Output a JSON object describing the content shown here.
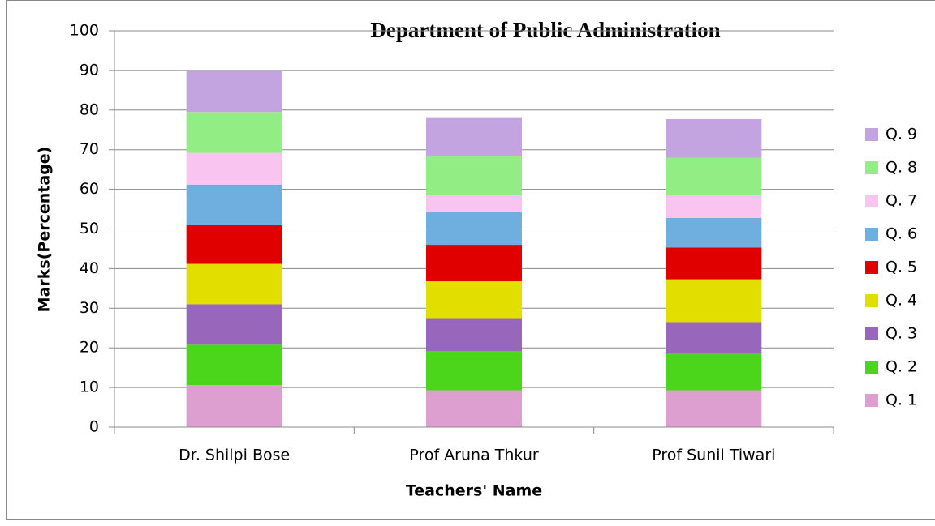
{
  "chart_data": {
    "type": "stacked_bar",
    "title": "Department of Public Administration",
    "x_label": "Teachers' Name",
    "y_label": "Marks(Percentage)",
    "categories": [
      "Dr. Shilpi Bose",
      "Prof Aruna Thkur",
      "Prof Sunil Tiwari"
    ],
    "series": [
      {
        "name": "Q. 1",
        "color": "#dd9fcf",
        "values": [
          10.6,
          9.3,
          9.3
        ]
      },
      {
        "name": "Q. 2",
        "color": "#4bd51b",
        "values": [
          10.2,
          9.9,
          9.3
        ]
      },
      {
        "name": "Q. 3",
        "color": "#9866ba",
        "values": [
          10.2,
          8.3,
          7.9
        ]
      },
      {
        "name": "Q. 4",
        "color": "#e2df00",
        "values": [
          10.2,
          9.3,
          10.8
        ]
      },
      {
        "name": "Q. 5",
        "color": "#e00000",
        "values": [
          9.8,
          9.2,
          8.0
        ]
      },
      {
        "name": "Q. 6",
        "color": "#6eafe0",
        "values": [
          10.2,
          8.2,
          7.5
        ]
      },
      {
        "name": "Q. 7",
        "color": "#f9c4ef",
        "values": [
          8.0,
          4.3,
          5.7
        ]
      },
      {
        "name": "Q. 8",
        "color": "#92ee84",
        "values": [
          10.3,
          9.8,
          9.5
        ]
      },
      {
        "name": "Q. 9",
        "color": "#c3a4e0",
        "values": [
          10.3,
          9.9,
          9.7
        ]
      }
    ],
    "ylim": [
      0,
      100
    ],
    "yticks": [
      0,
      10,
      20,
      30,
      40,
      50,
      60,
      70,
      80,
      90,
      100
    ],
    "grid": true,
    "legend": "right"
  }
}
